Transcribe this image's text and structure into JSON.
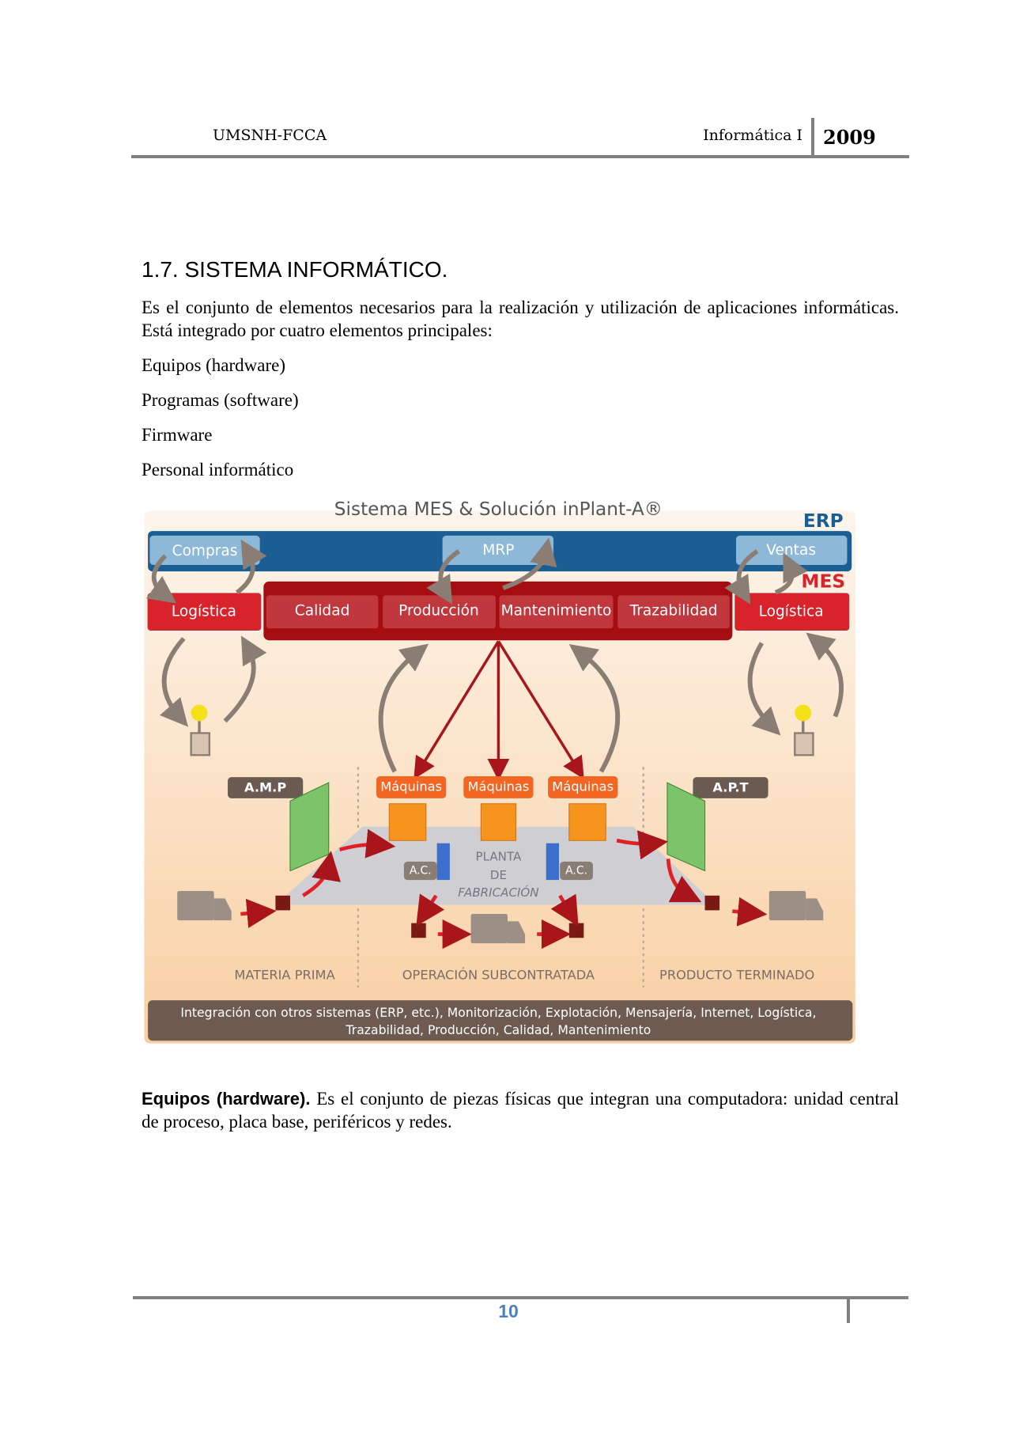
{
  "header": {
    "left": "UMSNH-FCCA",
    "subject": "Informática I",
    "year": "2009"
  },
  "section": {
    "title": "1.7. SISTEMA INFORMÁTICO.",
    "intro": "Es el conjunto de elementos necesarios para la realización y utilización de aplicaciones informáticas. Está integrado por cuatro elementos principales:",
    "items": [
      "Equipos (hardware)",
      "Programas (software)",
      "Firmware",
      "Personal informático"
    ]
  },
  "figure": {
    "title": "Sistema MES & Solución inPlant-A®",
    "erp": "ERP",
    "mes": "MES",
    "erp_modules": [
      "Compras",
      "MRP",
      "Ventas"
    ],
    "mes_modules": [
      "Logística",
      "Calidad",
      "Producción",
      "Mantenimiento",
      "Trazabilidad",
      "Logística"
    ],
    "stores": [
      "A.M.P",
      "A.P.T"
    ],
    "machines": [
      "Máquinas",
      "Máquinas",
      "Máquinas"
    ],
    "ac": [
      "A.C.",
      "A.C."
    ],
    "plant": [
      "PLANTA",
      "DE",
      "FABRICACIÓN"
    ],
    "zones": [
      "MATERIA PRIMA",
      "OPERACIÓN SUBCONTRATADA",
      "PRODUCTO TERMINADO"
    ],
    "integration": [
      "Integración con otros sistemas (ERP, etc.), Monitorización, Explotación, Mensajería, Internet, Logística,",
      "Trazabilidad, Producción, Calidad, Mantenimiento"
    ]
  },
  "body": {
    "term": "Equipos (hardware).",
    "text": " Es el conjunto de piezas físicas que integran una computadora: unidad central de proceso, placa base, periféricos y redes."
  },
  "footer": {
    "page": "10"
  }
}
